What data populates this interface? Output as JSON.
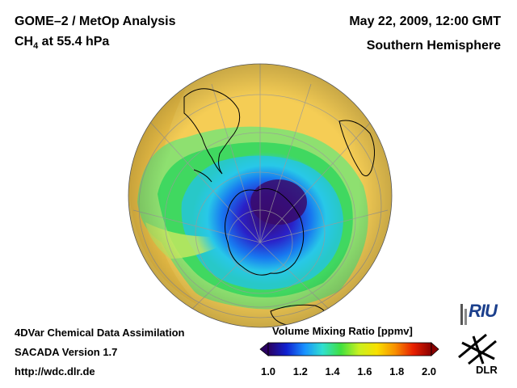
{
  "header": {
    "title": "GOME–2 / MetOp Analysis",
    "species_prefix": "CH",
    "species_sub": "4",
    "species_suffix": " at 55.4 hPa",
    "datetime": "May 22, 2009, 12:00 GMT",
    "hemisphere": "Southern Hemisphere"
  },
  "footer": {
    "line1": "4DVar Chemical Data Assimilation",
    "line2": "SACADA Version 1.7",
    "line3": "http://wdc.dlr.de"
  },
  "colorbar": {
    "title": "Volume Mixing Ratio [ppmv]",
    "ticks": [
      "1.0",
      "1.2",
      "1.4",
      "1.6",
      "1.8",
      "2.0"
    ],
    "min": 1.0,
    "max": 2.0,
    "colors": [
      "#2a0060",
      "#1020d0",
      "#1890ff",
      "#30e0d0",
      "#40e040",
      "#c8f020",
      "#f8e000",
      "#f89000",
      "#e82000",
      "#8a0000"
    ]
  },
  "logos": {
    "riu": "RIU",
    "dlr": "DLR"
  },
  "map": {
    "background_value_color": "#f5cd55",
    "vortex_core_color": "#3a0a6a"
  }
}
